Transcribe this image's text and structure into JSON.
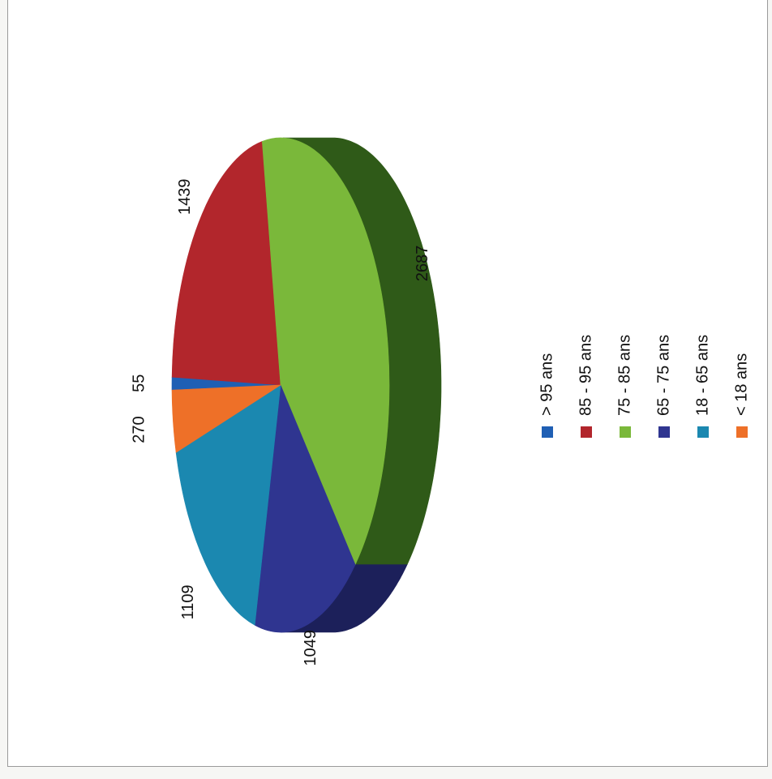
{
  "chart_data": {
    "type": "pie",
    "categories": [
      "> 95 ans",
      "85 - 95 ans",
      "75 - 85 ans",
      "65 - 75 ans",
      "18 - 65 ans",
      "< 18 ans"
    ],
    "values": [
      55,
      1439,
      2687,
      1049,
      1109,
      270
    ],
    "colors": [
      "#1f5fb4",
      "#b2262c",
      "#7ab83a",
      "#2f3590",
      "#1b88b0",
      "#ee7028"
    ],
    "side_colors": [
      "#12397a",
      "#6e161a",
      "#2f5a18",
      "#1c205a",
      "#0f5470",
      "#9a4316"
    ],
    "three_d": true,
    "legend_position": "right"
  }
}
